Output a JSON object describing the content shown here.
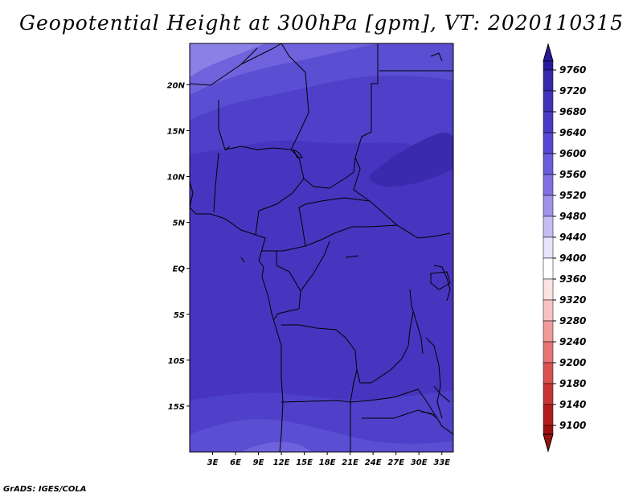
{
  "title": "Geopotential Height at 300hPa [gpm], VT: 2020110315",
  "footer": "GrADS: IGES/COLA",
  "chart_data": {
    "type": "heatmap",
    "title": "Geopotential Height at 300hPa [gpm], VT: 2020110315",
    "variable": "Geopotential Height at 300hPa",
    "units": "gpm",
    "valid_time": "2020110315",
    "lon_range": [
      0,
      34.5
    ],
    "lat_range": [
      -20,
      24.5
    ],
    "x_ticks": [
      "3E",
      "6E",
      "9E",
      "12E",
      "15E",
      "18E",
      "21E",
      "24E",
      "27E",
      "30E",
      "33E"
    ],
    "y_ticks": [
      "20N",
      "15N",
      "10N",
      "5N",
      "EQ",
      "5S",
      "10S",
      "15S"
    ],
    "colorbar_levels": [
      9760,
      9720,
      9680,
      9640,
      9600,
      9560,
      9520,
      9480,
      9440,
      9400,
      9360,
      9320,
      9280,
      9240,
      9200,
      9180,
      9140,
      9100
    ],
    "colorbar_colors": [
      "#2a1a9b",
      "#3628a8",
      "#4232b8",
      "#4a3ac4",
      "#5648d0",
      "#6a5cda",
      "#8070e2",
      "#9f93ea",
      "#c4bdf2",
      "#e6e3fa",
      "#ffffff",
      "#fde2e2",
      "#f8c2c2",
      "#f09a9a",
      "#e67474",
      "#d95050",
      "#c73434",
      "#b01c1c",
      "#9a1010"
    ],
    "field_bands": [
      {
        "range": "9520-9560",
        "region": "far northwest corner"
      },
      {
        "range": "9560-9600",
        "region": "northwest"
      },
      {
        "range": "9600-9640",
        "region": "north and far south"
      },
      {
        "range": "9640-9680",
        "region": "central north and south band"
      },
      {
        "range": "9680-9720",
        "region": "tropics (most of domain)"
      },
      {
        "range": "9720-9760",
        "region": "northeast patch"
      }
    ]
  }
}
